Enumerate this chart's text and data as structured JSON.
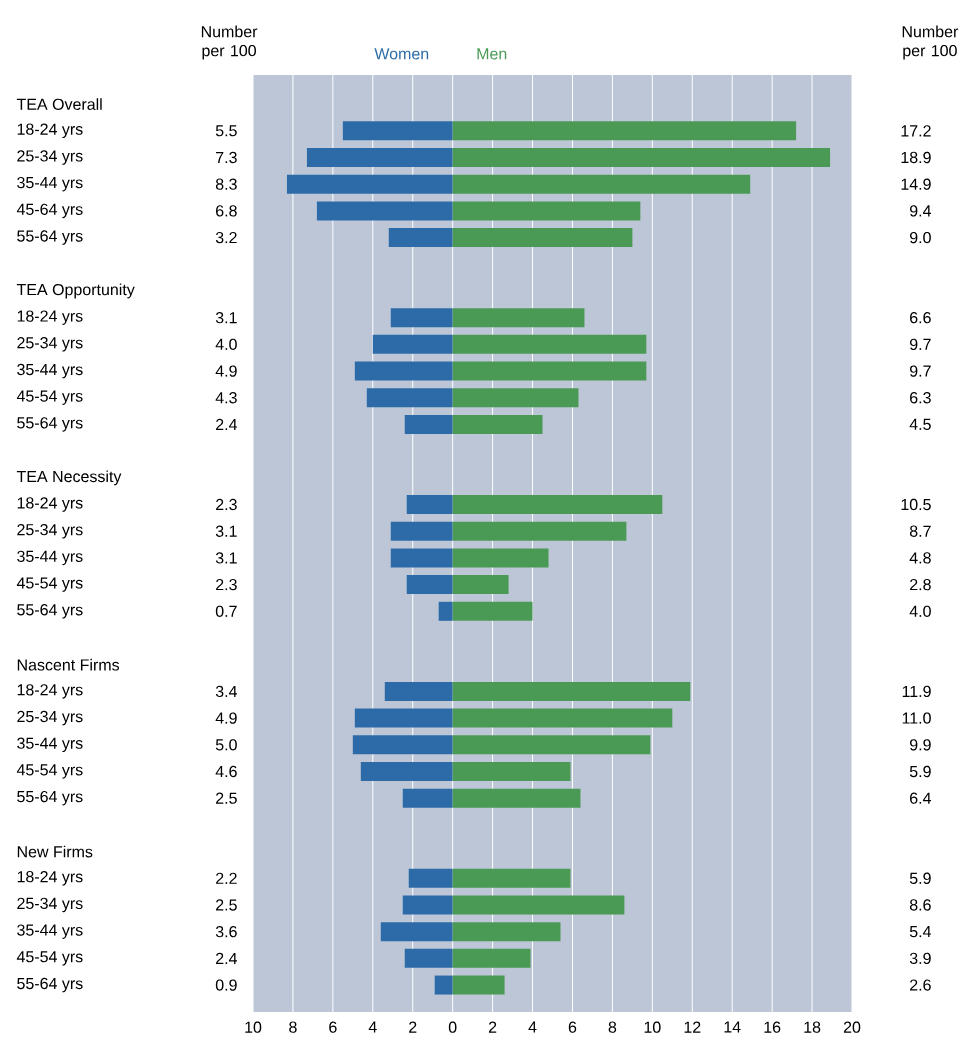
{
  "chart_data": {
    "type": "bar",
    "orientation": "horizontal",
    "categories": [
      "TEA Overall",
      "18-24 yrs",
      "25-34 yrs",
      "35-44 yrs",
      "45-64 yrs",
      "55-64 yrs",
      null,
      "TEA Opportunity",
      "18-24 yrs",
      "25-34 yrs",
      "35-44 yrs",
      "45-54 yrs",
      "55-64 yrs",
      null,
      "TEA Necessity",
      "18-24 yrs",
      "25-34 yrs",
      "35-44 yrs",
      "45-54 yrs",
      "55-64 yrs",
      null,
      "Nascent Firms",
      "18-24 yrs",
      "25-34 yrs",
      "35-44 yrs",
      "45-54 yrs",
      "55-64 yrs",
      null,
      "New Firms",
      "18-24 yrs",
      "25-34 yrs",
      "35-44 yrs",
      "45-54 yrs",
      "55-64 yrs"
    ],
    "series": [
      {
        "name": "Women",
        "color": "#2d6ba8",
        "values": [
          null,
          5.5,
          7.3,
          8.3,
          6.8,
          3.2,
          null,
          null,
          3.1,
          4.0,
          4.9,
          4.3,
          2.4,
          null,
          null,
          2.3,
          3.1,
          3.1,
          2.3,
          0.7,
          null,
          null,
          3.4,
          4.9,
          5.0,
          4.6,
          2.5,
          null,
          null,
          2.2,
          2.5,
          3.6,
          2.4,
          0.9
        ],
        "base": [
          null,
          -5.5,
          -7.3,
          -8.3,
          -6.8,
          -3.2,
          null,
          null,
          -3.1,
          -4.0,
          -4.9,
          -4.3,
          -2.4,
          null,
          null,
          -2.3,
          -3.1,
          -3.1,
          -2.3,
          -0.7,
          null,
          null,
          -3.4,
          -4.9,
          -5.0,
          -4.6,
          -2.5,
          null,
          null,
          -2.2,
          -2.5,
          -3.6,
          -2.4,
          -0.9
        ],
        "value_labels": [
          null,
          "5.5",
          "7.3",
          "8.3",
          "6.8",
          "3.2",
          null,
          null,
          "3.1",
          "4.0",
          "4.9",
          "4.3",
          "2.4",
          null,
          null,
          "2.3",
          "3.1",
          "3.1",
          "2.3",
          "0.7",
          null,
          null,
          "3.4",
          "4.9",
          "5.0",
          "4.6",
          "2.5",
          null,
          null,
          "2.2",
          "2.5",
          "3.6",
          "2.4",
          "0.9"
        ]
      },
      {
        "name": "Men",
        "color": "#4a9a55",
        "values": [
          null,
          17.2,
          18.9,
          14.9,
          9.4,
          9.0,
          null,
          null,
          6.6,
          9.7,
          9.7,
          6.3,
          4.5,
          null,
          null,
          10.5,
          8.7,
          4.8,
          2.8,
          4.0,
          null,
          null,
          11.9,
          11.0,
          9.9,
          5.9,
          6.4,
          null,
          null,
          5.9,
          8.6,
          5.4,
          3.9,
          2.6
        ],
        "value_labels": [
          null,
          "17.2",
          "18.9",
          "14.9",
          "9.4",
          "9.0",
          null,
          null,
          "6.6",
          "9.7",
          "9.7",
          "6.3",
          "4.5",
          null,
          null,
          "10.5",
          "8.7",
          "4.8",
          "2.8",
          "4.0",
          null,
          null,
          "11.9",
          "11.0",
          "9.9",
          "5.9",
          "6.4",
          null,
          null,
          "5.9",
          "8.6",
          "5.4",
          "3.9",
          "2.6"
        ]
      }
    ],
    "xlim": [
      -10,
      20
    ],
    "xticks": [
      {
        "value": -10,
        "label": "10"
      },
      {
        "value": -8,
        "label": "8"
      },
      {
        "value": -6,
        "label": "6"
      },
      {
        "value": -4,
        "label": "4"
      },
      {
        "value": -2,
        "label": "2"
      },
      0,
      2,
      4,
      6,
      8,
      10,
      12,
      14,
      16,
      18,
      20
    ],
    "grid": "x",
    "annotations": [
      "Number per 100",
      "Number per 100"
    ]
  }
}
